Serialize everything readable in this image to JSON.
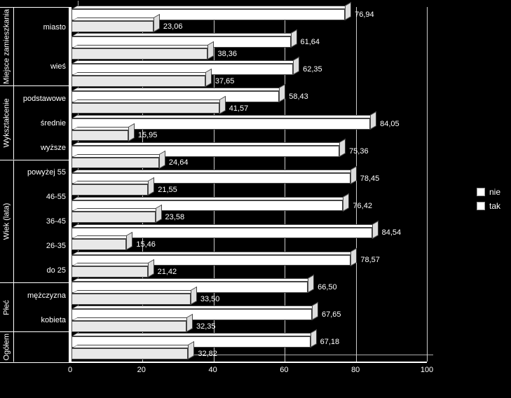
{
  "chart": {
    "type": "bar",
    "background_color": "#000000",
    "bar_colors": {
      "nie": "#ffffff",
      "tak": "#e8e8e8"
    },
    "grid_color": "#cccccc",
    "text_color": "#ffffff",
    "label_fontsize": 11,
    "x_axis": {
      "min": 0,
      "max": 100,
      "ticks": [
        0,
        20,
        40,
        60,
        80,
        100
      ]
    },
    "legend": {
      "items": [
        {
          "key": "nie",
          "label": "nie"
        },
        {
          "key": "tak",
          "label": "tak"
        }
      ]
    },
    "groups": [
      {
        "label": "Miejsce zamieszkania",
        "categories": [
          {
            "label": "miasto",
            "nie": 76.94,
            "tak": 23.06
          },
          {
            "label": "wieś",
            "nie": 61.64,
            "tak": 38.36
          }
        ]
      },
      {
        "label": "Wykształcenie",
        "categories": [
          {
            "label": "podstawowe",
            "nie": 62.35,
            "tak": 37.65
          },
          {
            "label": "średnie",
            "nie": 58.43,
            "tak": 41.57
          },
          {
            "label": "wyższe",
            "nie": 84.05,
            "tak": 15.95
          }
        ]
      },
      {
        "label": "Wiek (lata)",
        "categories": [
          {
            "label": "powyżej 55",
            "nie": 75.36,
            "tak": 24.64
          },
          {
            "label": "46-55",
            "nie": 78.45,
            "tak": 21.55
          },
          {
            "label": "36-45",
            "nie": 76.42,
            "tak": 23.58
          },
          {
            "label": "26-35",
            "nie": 84.54,
            "tak": 15.46
          },
          {
            "label": "do 25",
            "nie": 78.57,
            "tak": 21.42
          }
        ]
      },
      {
        "label": "Płeć",
        "categories": [
          {
            "label": "mężczyzna",
            "nie": 66.5,
            "tak": 33.5
          },
          {
            "label": "kobieta",
            "nie": 67.65,
            "tak": 32.35
          }
        ]
      },
      {
        "label": "Ogółem",
        "categories": [
          {
            "label": "",
            "nie": 67.18,
            "tak": 32.82
          }
        ]
      }
    ]
  }
}
